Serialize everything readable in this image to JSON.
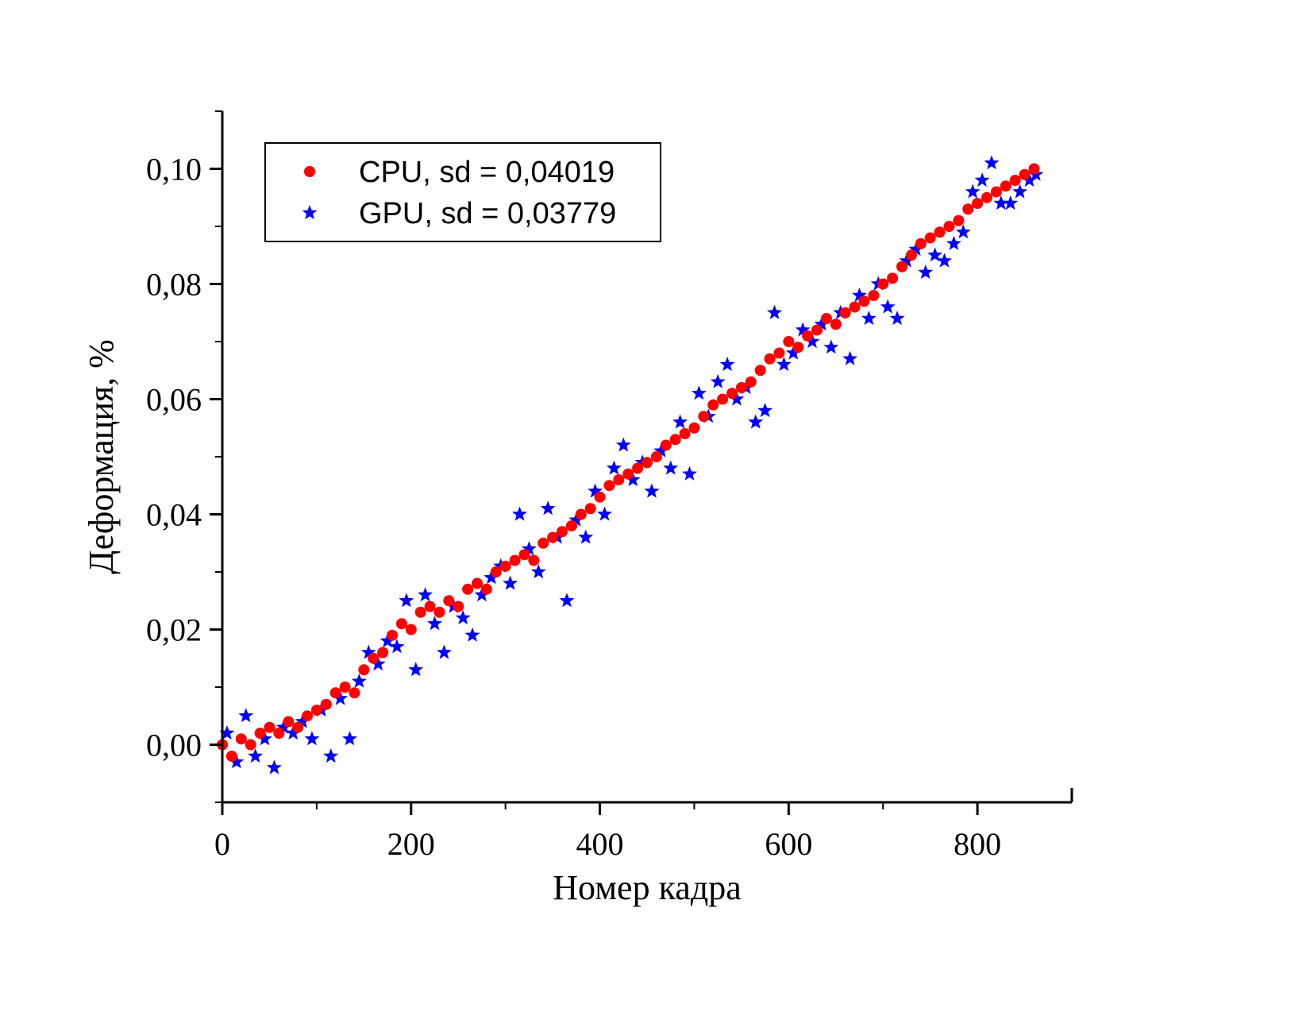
{
  "chart_data": {
    "type": "scatter",
    "xlabel": "Номер кадра",
    "ylabel": "Деформация, %",
    "xlim": [
      0,
      900
    ],
    "ylim": [
      -0.01,
      0.11
    ],
    "x_ticks": [
      0,
      200,
      400,
      600,
      800
    ],
    "x_tick_labels": [
      "0",
      "200",
      "400",
      "600",
      "800"
    ],
    "y_ticks": [
      0.0,
      0.02,
      0.04,
      0.06,
      0.08,
      0.1
    ],
    "y_tick_labels": [
      "0,00",
      "0,02",
      "0,04",
      "0,06",
      "0,08",
      "0,10"
    ],
    "grid": false,
    "legend_position": "top-left",
    "series": [
      {
        "name": "CPU, sd = 0,04019",
        "marker": "circle",
        "color": "#ff0000",
        "x": [
          0,
          10,
          20,
          30,
          40,
          50,
          60,
          70,
          80,
          90,
          100,
          110,
          120,
          130,
          140,
          150,
          160,
          170,
          180,
          190,
          200,
          210,
          220,
          230,
          240,
          250,
          260,
          270,
          280,
          290,
          300,
          310,
          320,
          330,
          340,
          350,
          360,
          370,
          380,
          390,
          400,
          410,
          420,
          430,
          440,
          450,
          460,
          470,
          480,
          490,
          500,
          510,
          520,
          530,
          540,
          550,
          560,
          570,
          580,
          590,
          600,
          610,
          620,
          630,
          640,
          650,
          660,
          670,
          680,
          690,
          700,
          710,
          720,
          730,
          740,
          750,
          760,
          770,
          780,
          790,
          800,
          810,
          820,
          830,
          840,
          850,
          860
        ],
        "y": [
          0.0,
          -0.002,
          0.001,
          0.0,
          0.002,
          0.003,
          0.002,
          0.004,
          0.003,
          0.005,
          0.006,
          0.007,
          0.009,
          0.01,
          0.009,
          0.013,
          0.015,
          0.016,
          0.019,
          0.021,
          0.02,
          0.023,
          0.024,
          0.023,
          0.025,
          0.024,
          0.027,
          0.028,
          0.027,
          0.03,
          0.031,
          0.032,
          0.033,
          0.032,
          0.035,
          0.036,
          0.037,
          0.038,
          0.04,
          0.041,
          0.043,
          0.045,
          0.046,
          0.047,
          0.048,
          0.049,
          0.05,
          0.052,
          0.053,
          0.054,
          0.055,
          0.057,
          0.059,
          0.06,
          0.061,
          0.062,
          0.063,
          0.065,
          0.067,
          0.068,
          0.07,
          0.069,
          0.071,
          0.072,
          0.074,
          0.073,
          0.075,
          0.076,
          0.077,
          0.078,
          0.08,
          0.081,
          0.083,
          0.085,
          0.087,
          0.088,
          0.089,
          0.09,
          0.091,
          0.093,
          0.094,
          0.095,
          0.096,
          0.097,
          0.098,
          0.099,
          0.1
        ]
      },
      {
        "name": "GPU, sd = 0,03779",
        "marker": "star",
        "color": "#0000ff",
        "x": [
          5,
          15,
          25,
          35,
          45,
          55,
          65,
          75,
          85,
          95,
          105,
          115,
          125,
          135,
          145,
          155,
          165,
          175,
          185,
          195,
          205,
          215,
          225,
          235,
          245,
          255,
          265,
          275,
          285,
          295,
          305,
          315,
          325,
          335,
          345,
          355,
          365,
          375,
          385,
          395,
          405,
          415,
          425,
          435,
          445,
          455,
          465,
          475,
          485,
          495,
          505,
          515,
          525,
          535,
          545,
          555,
          565,
          575,
          585,
          595,
          605,
          615,
          625,
          635,
          645,
          655,
          665,
          675,
          685,
          695,
          705,
          715,
          725,
          735,
          745,
          755,
          765,
          775,
          785,
          795,
          805,
          815,
          825,
          835,
          845,
          855,
          862
        ],
        "y": [
          0.002,
          -0.003,
          0.005,
          -0.002,
          0.001,
          -0.004,
          0.003,
          0.002,
          0.004,
          0.001,
          0.006,
          -0.002,
          0.008,
          0.001,
          0.011,
          0.016,
          0.014,
          0.018,
          0.017,
          0.025,
          0.013,
          0.026,
          0.021,
          0.016,
          0.024,
          0.022,
          0.019,
          0.026,
          0.029,
          0.031,
          0.028,
          0.04,
          0.034,
          0.03,
          0.041,
          0.036,
          0.025,
          0.039,
          0.036,
          0.044,
          0.04,
          0.048,
          0.052,
          0.046,
          0.049,
          0.044,
          0.051,
          0.048,
          0.056,
          0.047,
          0.061,
          0.057,
          0.063,
          0.066,
          0.06,
          0.062,
          0.056,
          0.058,
          0.075,
          0.066,
          0.068,
          0.072,
          0.07,
          0.073,
          0.069,
          0.075,
          0.067,
          0.078,
          0.074,
          0.08,
          0.076,
          0.074,
          0.084,
          0.086,
          0.082,
          0.085,
          0.084,
          0.087,
          0.089,
          0.096,
          0.098,
          0.101,
          0.094,
          0.094,
          0.096,
          0.098,
          0.099
        ]
      }
    ]
  }
}
